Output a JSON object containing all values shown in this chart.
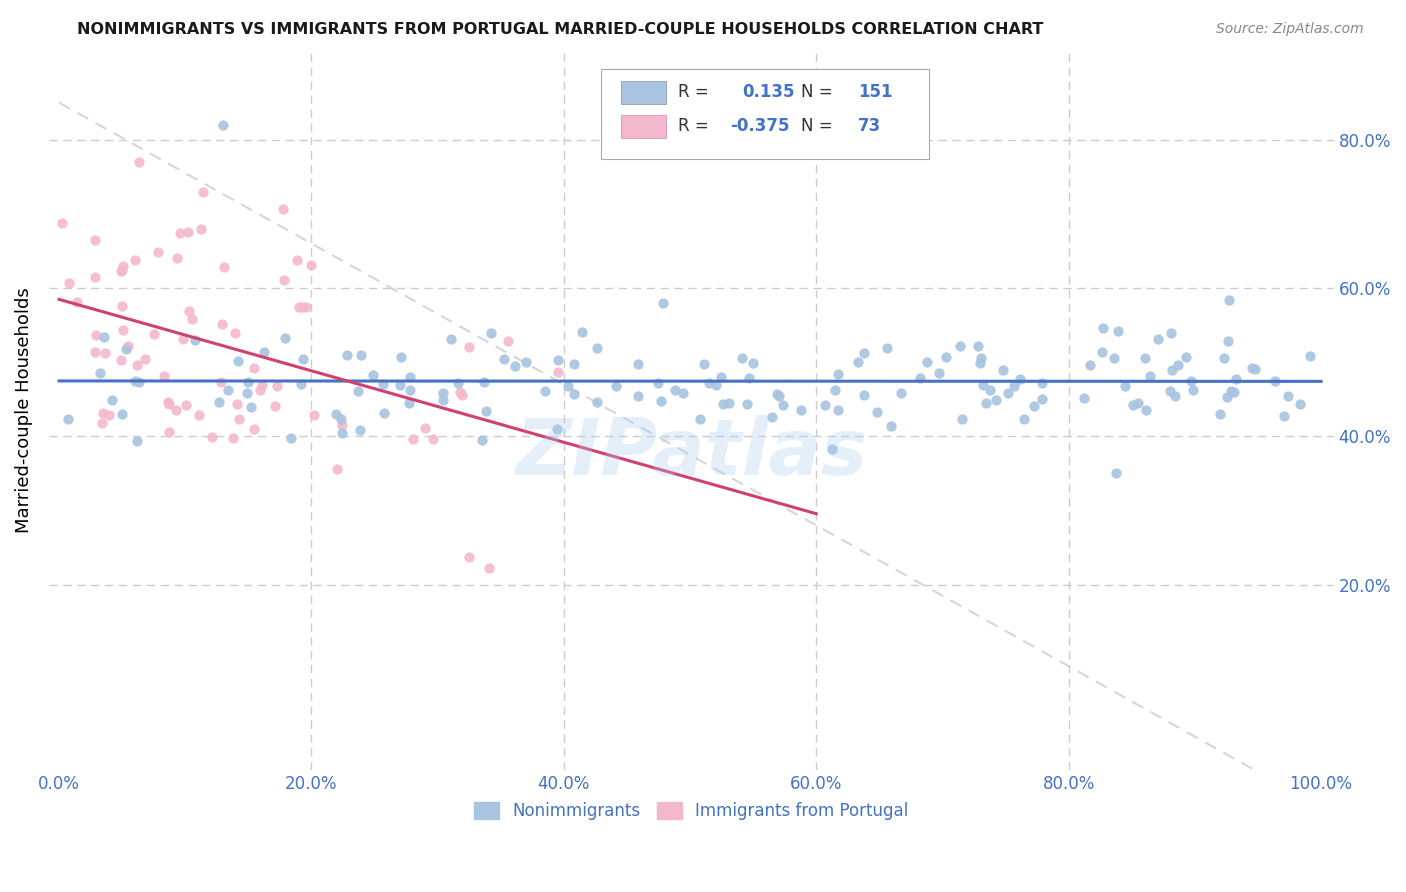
{
  "title": "NONIMMIGRANTS VS IMMIGRANTS FROM PORTUGAL MARRIED-COUPLE HOUSEHOLDS CORRELATION CHART",
  "source": "Source: ZipAtlas.com",
  "ylabel": "Married-couple Households",
  "blue_color": "#a8c4e0",
  "pink_color": "#f4b8cc",
  "blue_line_color": "#4472c4",
  "pink_line_color": "#d04070",
  "dashed_line_color": "#cccccc",
  "watermark": "ZIPatlas",
  "legend_R_blue": "0.135",
  "legend_N_blue": "151",
  "legend_R_pink": "-0.375",
  "legend_N_pink": "73",
  "blue_R": 0.135,
  "blue_N": 151,
  "pink_R": -0.375,
  "pink_N": 73,
  "seed": 42
}
